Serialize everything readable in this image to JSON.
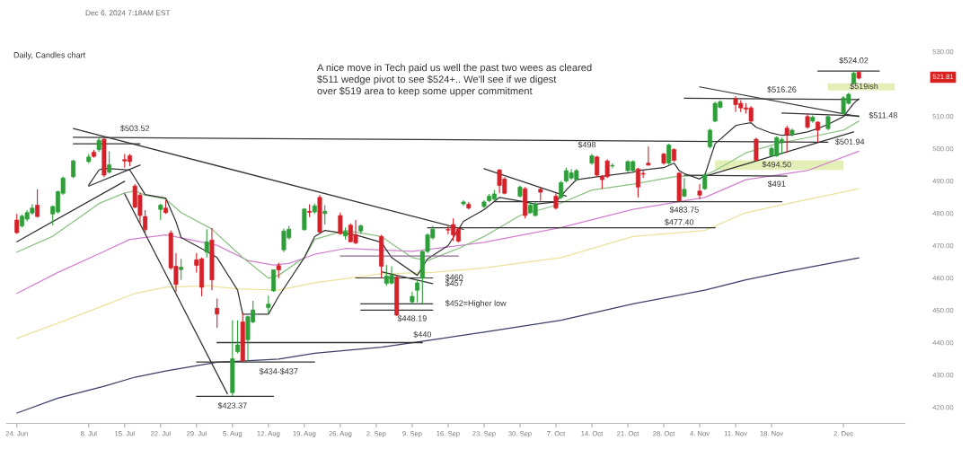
{
  "chart_data": {
    "type": "candlestick",
    "title": "Daily, Candles chart",
    "subtitle": "Dec 6, 2024 7:18AM EST",
    "x": [
      "2024-06-24",
      "2024-06-25",
      "2024-06-26",
      "2024-06-27",
      "2024-06-28",
      "2024-07-01",
      "2024-07-02",
      "2024-07-03",
      "2024-07-05",
      "2024-07-08",
      "2024-07-09",
      "2024-07-10",
      "2024-07-11",
      "2024-07-12",
      "2024-07-15",
      "2024-07-16",
      "2024-07-17",
      "2024-07-18",
      "2024-07-19",
      "2024-07-22",
      "2024-07-23",
      "2024-07-24",
      "2024-07-25",
      "2024-07-26",
      "2024-07-29",
      "2024-07-30",
      "2024-07-31",
      "2024-08-01",
      "2024-08-02",
      "2024-08-05",
      "2024-08-06",
      "2024-08-07",
      "2024-08-08",
      "2024-08-09",
      "2024-08-12",
      "2024-08-13",
      "2024-08-14",
      "2024-08-15",
      "2024-08-16",
      "2024-08-19",
      "2024-08-20",
      "2024-08-21",
      "2024-08-22",
      "2024-08-23",
      "2024-08-26",
      "2024-08-27",
      "2024-08-28",
      "2024-08-29",
      "2024-08-30",
      "2024-09-03",
      "2024-09-04",
      "2024-09-05",
      "2024-09-06",
      "2024-09-09",
      "2024-09-10",
      "2024-09-11",
      "2024-09-12",
      "2024-09-13",
      "2024-09-16",
      "2024-09-17",
      "2024-09-18",
      "2024-09-19",
      "2024-09-20",
      "2024-09-23",
      "2024-09-24",
      "2024-09-25",
      "2024-09-26",
      "2024-09-27",
      "2024-09-30",
      "2024-10-01",
      "2024-10-02",
      "2024-10-03",
      "2024-10-04",
      "2024-10-07",
      "2024-10-08",
      "2024-10-09",
      "2024-10-10",
      "2024-10-11",
      "2024-10-14",
      "2024-10-15",
      "2024-10-16",
      "2024-10-17",
      "2024-10-18",
      "2024-10-21",
      "2024-10-22",
      "2024-10-23",
      "2024-10-24",
      "2024-10-25",
      "2024-10-28",
      "2024-10-29",
      "2024-10-30",
      "2024-10-31",
      "2024-11-01",
      "2024-11-04",
      "2024-11-05",
      "2024-11-06",
      "2024-11-07",
      "2024-11-08",
      "2024-11-11",
      "2024-11-12",
      "2024-11-13",
      "2024-11-14",
      "2024-11-15",
      "2024-11-18",
      "2024-11-19",
      "2024-11-20",
      "2024-11-21",
      "2024-11-22",
      "2024-11-25",
      "2024-11-26",
      "2024-11-27",
      "2024-11-29",
      "2024-12-02",
      "2024-12-03",
      "2024-12-04",
      "2024-12-05"
    ],
    "ohlc": [
      [
        477.9,
        479.8,
        473.6,
        474.0
      ],
      [
        476.1,
        479.6,
        475.6,
        479.1
      ],
      [
        478.2,
        481.0,
        477.5,
        480.2
      ],
      [
        480.1,
        482.8,
        479.5,
        481.6
      ],
      [
        482.5,
        487.4,
        478.6,
        479.0
      ],
      [
        479.8,
        482.4,
        476.3,
        482.1
      ],
      [
        480.4,
        487.0,
        479.9,
        486.7
      ],
      [
        486.2,
        491.3,
        485.7,
        490.9
      ],
      [
        491.3,
        496.6,
        490.8,
        496.2
      ],
      [
        496.0,
        498.3,
        495.5,
        497.4
      ],
      [
        498.9,
        499.6,
        497.2,
        497.6
      ],
      [
        499.7,
        503.52,
        499.0,
        502.6
      ],
      [
        502.9,
        503.3,
        491.2,
        491.8
      ],
      [
        492.7,
        499.2,
        492.3,
        495.0
      ],
      [
        496.6,
        498.3,
        494.1,
        496.2
      ],
      [
        497.8,
        498.3,
        494.6,
        496.0
      ],
      [
        488.4,
        489.0,
        481.5,
        481.9
      ],
      [
        485.6,
        486.3,
        476.7,
        479.3
      ],
      [
        479.0,
        481.0,
        473.7,
        474.9
      ],
      [
        481.2,
        483.0,
        477.9,
        482.5
      ],
      [
        481.6,
        484.0,
        479.8,
        480.2
      ],
      [
        473.9,
        474.7,
        462.6,
        463.1
      ],
      [
        463.6,
        467.7,
        455.7,
        458.0
      ],
      [
        462.6,
        465.9,
        459.4,
        463.3
      ],
      [
        465.6,
        467.7,
        461.7,
        463.9
      ],
      [
        465.9,
        466.3,
        454.3,
        457.1
      ],
      [
        468.0,
        475.1,
        466.3,
        471.2
      ],
      [
        471.7,
        475.4,
        456.2,
        459.4
      ],
      [
        450.6,
        453.6,
        444.6,
        448.8
      ],
      [
        424.5,
        446.9,
        423.37,
        435.0
      ],
      [
        437.2,
        446.9,
        436.7,
        439.3
      ],
      [
        446.4,
        449.2,
        434.1,
        434.4
      ],
      [
        440.9,
        448.3,
        434.4,
        448.0
      ],
      [
        446.4,
        452.9,
        446.0,
        450.1
      ],
      [
        450.8,
        454.5,
        449.0,
        451.9
      ],
      [
        456.0,
        462.6,
        455.7,
        462.5
      ],
      [
        463.8,
        464.7,
        459.9,
        462.5
      ],
      [
        468.7,
        475.3,
        468.0,
        474.5
      ],
      [
        472.4,
        476.1,
        471.9,
        475.1
      ],
      [
        474.9,
        481.6,
        474.7,
        481.3
      ],
      [
        480.6,
        482.8,
        478.8,
        480.3
      ],
      [
        480.4,
        483.0,
        479.8,
        482.3
      ],
      [
        484.9,
        485.6,
        473.9,
        474.2
      ],
      [
        479.9,
        482.5,
        476.5,
        480.6
      ],
      [
        479.3,
        480.2,
        473.3,
        473.7
      ],
      [
        473.0,
        475.6,
        471.9,
        474.4
      ],
      [
        476.3,
        476.8,
        471.0,
        471.2
      ],
      [
        473.3,
        477.9,
        470.5,
        470.8
      ],
      [
        474.5,
        476.5,
        473.7,
        476.1
      ],
      [
        472.8,
        473.3,
        459.9,
        463.6
      ],
      [
        458.3,
        464.0,
        457.6,
        460.6
      ],
      [
        458.4,
        463.6,
        458.0,
        460.8
      ],
      [
        460.3,
        460.8,
        448.19,
        448.5
      ],
      [
        452.6,
        455.7,
        452.0,
        454.3
      ],
      [
        456.2,
        459.4,
        452.4,
        458.5
      ],
      [
        459.9,
        468.5,
        452.0,
        468.2
      ],
      [
        468.2,
        473.8,
        467.7,
        473.3
      ],
      [
        472.4,
        476.1,
        471.9,
        475.1
      ],
      [
        475.0,
        476.0,
        473.5,
        474.8
      ],
      [
        476.5,
        478.4,
        471.4,
        473.3
      ],
      [
        475.1,
        475.6,
        471.0,
        471.4
      ],
      [
        482.9,
        484.0,
        482.3,
        483.5
      ],
      [
        482.8,
        483.5,
        481.2,
        481.6
      ],
      [
        482.1,
        484.0,
        481.6,
        483.5
      ],
      [
        483.9,
        486.0,
        483.5,
        485.3
      ],
      [
        484.4,
        487.2,
        483.9,
        486.0
      ],
      [
        493.4,
        493.7,
        486.2,
        488.6
      ],
      [
        490.6,
        491.2,
        485.8,
        486.2
      ],
      [
        485.3,
        488.6,
        484.9,
        488.1
      ],
      [
        487.6,
        488.1,
        478.4,
        479.3
      ],
      [
        480.2,
        483.5,
        479.8,
        482.5
      ],
      [
        479.3,
        483.5,
        479.1,
        482.8
      ],
      [
        487.4,
        488.1,
        483.9,
        486.5
      ],
      [
        485.3,
        486.2,
        481.2,
        481.6
      ],
      [
        484.9,
        490.0,
        484.4,
        489.5
      ],
      [
        490.0,
        494.1,
        489.5,
        493.2
      ],
      [
        490.9,
        493.7,
        490.4,
        492.5
      ],
      [
        490.4,
        493.7,
        490.0,
        493.2
      ],
      [
        495.5,
        498.3,
        495.0,
        497.8
      ],
      [
        497.4,
        497.8,
        491.3,
        491.8
      ],
      [
        491.3,
        491.8,
        487.6,
        490.4
      ],
      [
        496.2,
        496.7,
        490.9,
        491.3
      ],
      [
        494.6,
        495.4,
        493.9,
        494.8
      ],
      [
        493.2,
        496.4,
        492.7,
        496.0
      ],
      [
        493.2,
        496.4,
        492.7,
        496.0
      ],
      [
        493.7,
        494.1,
        484.9,
        488.1
      ],
      [
        492.3,
        493.2,
        490.9,
        492.1
      ],
      [
        495.5,
        500.6,
        494.7,
        494.9
      ],
      [
        498.3,
        498.7,
        495.0,
        495.5
      ],
      [
        495.5,
        501.5,
        495.0,
        501.1
      ],
      [
        499.7,
        500.1,
        496.0,
        496.4
      ],
      [
        492.4,
        492.7,
        483.75,
        483.8
      ],
      [
        485.3,
        490.9,
        485.0,
        487.4
      ],
      [
        486.9,
        489.0,
        484.4,
        485.6
      ],
      [
        487.6,
        492.3,
        487.2,
        491.8
      ],
      [
        500.6,
        506.2,
        500.1,
        505.7
      ],
      [
        508.5,
        514.5,
        508.2,
        514.0
      ],
      [
        512.8,
        515.0,
        512.4,
        514.5
      ],
      [
        515.4,
        516.26,
        511.3,
        513.6
      ],
      [
        514.0,
        515.0,
        511.3,
        512.6
      ],
      [
        512.6,
        514.0,
        510.8,
        512.2
      ],
      [
        512.6,
        513.1,
        508.2,
        508.5
      ],
      [
        502.9,
        503.4,
        496.0,
        496.4
      ],
      [
        497.8,
        500.6,
        497.4,
        500.1
      ],
      [
        497.8,
        503.8,
        497.4,
        503.4
      ],
      [
        502.3,
        503.4,
        498.3,
        502.8
      ],
      [
        506.3,
        507.1,
        498.7,
        504.3
      ],
      [
        504.3,
        506.2,
        503.8,
        505.7
      ],
      [
        509.9,
        510.8,
        506.2,
        506.6
      ],
      [
        508.5,
        510.3,
        508.0,
        509.7
      ],
      [
        508.2,
        508.5,
        501.94,
        505.7
      ],
      [
        506.2,
        510.3,
        505.7,
        509.9
      ],
      [
        510.8,
        516.3,
        510.6,
        515.7
      ],
      [
        514.0,
        517.3,
        513.6,
        516.8
      ],
      [
        520.2,
        523.8,
        520.1,
        523.3
      ],
      [
        523.6,
        524.02,
        521.4,
        521.81
      ]
    ],
    "series": [
      {
        "type": "line",
        "color": "#3c3f68",
        "x": [
          "2024-06-24",
          "2024-07-02",
          "2024-07-11",
          "2024-07-17",
          "2024-07-23",
          "2024-08-02",
          "2024-08-14",
          "2024-08-21",
          "2024-09-03",
          "2024-09-13",
          "2024-09-23",
          "2024-10-08",
          "2024-10-22",
          "2024-11-05",
          "2024-11-13",
          "2024-11-20",
          "2024-12-05"
        ],
        "values": [
          418.2,
          422.8,
          426.5,
          429.3,
          431.2,
          433.9,
          434.9,
          436.7,
          438.6,
          440.9,
          443.2,
          446.9,
          452.0,
          456.2,
          459.4,
          461.7,
          466.2
        ]
      },
      {
        "type": "line",
        "color": "#ebe39a",
        "x": [
          "2024-06-24",
          "2024-07-02",
          "2024-07-11",
          "2024-07-17",
          "2024-07-23",
          "2024-07-31",
          "2024-08-06",
          "2024-08-14",
          "2024-08-21",
          "2024-09-03",
          "2024-09-13",
          "2024-09-23",
          "2024-10-08",
          "2024-10-22",
          "2024-11-05",
          "2024-11-13",
          "2024-11-20",
          "2024-12-05"
        ],
        "values": [
          441.3,
          446.0,
          451.5,
          455.2,
          457.1,
          457.6,
          456.6,
          456.2,
          458.5,
          461.3,
          461.7,
          463.1,
          466.3,
          472.8,
          474.7,
          480.2,
          482.6,
          487.6
        ]
      },
      {
        "type": "line",
        "color": "#d27fd0",
        "x": [
          "2024-06-24",
          "2024-07-02",
          "2024-07-11",
          "2024-07-16",
          "2024-07-23",
          "2024-07-26",
          "2024-08-02",
          "2024-08-08",
          "2024-08-13",
          "2024-08-16",
          "2024-08-21",
          "2024-08-27",
          "2024-09-09",
          "2024-09-23",
          "2024-10-08",
          "2024-10-22",
          "2024-11-05",
          "2024-11-13",
          "2024-11-25",
          "2024-12-05"
        ],
        "values": [
          455.2,
          461.7,
          468.2,
          471.9,
          473.3,
          472.4,
          470.1,
          465.4,
          464.0,
          464.5,
          467.3,
          469.1,
          468.2,
          471.0,
          475.6,
          481.2,
          484.9,
          490.4,
          493.2,
          499.2
        ]
      },
      {
        "type": "line",
        "color": "#8cc084",
        "x": [
          "2024-06-24",
          "2024-07-01",
          "2024-07-10",
          "2024-07-15",
          "2024-07-17",
          "2024-07-19",
          "2024-07-23",
          "2024-07-26",
          "2024-08-01",
          "2024-08-07",
          "2024-08-12",
          "2024-08-14",
          "2024-08-19",
          "2024-08-21",
          "2024-08-27",
          "2024-09-03",
          "2024-09-09",
          "2024-09-12",
          "2024-09-18",
          "2024-09-23",
          "2024-09-30",
          "2024-10-07",
          "2024-10-14",
          "2024-10-22",
          "2024-10-30",
          "2024-11-05",
          "2024-11-07",
          "2024-11-13",
          "2024-11-19",
          "2024-11-25",
          "2024-12-02",
          "2024-12-05"
        ],
        "values": [
          468.0,
          472.9,
          483.0,
          486.3,
          486.9,
          485.6,
          484.4,
          480.2,
          475.1,
          466.3,
          459.9,
          460.8,
          466.3,
          471.9,
          474.7,
          472.8,
          466.3,
          465.4,
          469.1,
          472.8,
          479.3,
          482.5,
          487.2,
          489.0,
          491.3,
          491.8,
          493.2,
          498.7,
          501.5,
          503.4,
          505.7,
          508.5
        ]
      },
      {
        "type": "line",
        "color": "#333333",
        "x": [
          "2024-07-08",
          "2024-07-10",
          "2024-07-11",
          "2024-07-16",
          "2024-07-19",
          "2024-07-23",
          "2024-07-25",
          "2024-07-26",
          "2024-07-31",
          "2024-08-02",
          "2024-08-06",
          "2024-08-07",
          "2024-08-12",
          "2024-08-14",
          "2024-08-19",
          "2024-08-21",
          "2024-08-23",
          "2024-08-29",
          "2024-09-03",
          "2024-09-05",
          "2024-09-10",
          "2024-09-12",
          "2024-09-16",
          "2024-09-19",
          "2024-09-23",
          "2024-09-26",
          "2024-10-01",
          "2024-10-03",
          "2024-10-07",
          "2024-10-09",
          "2024-10-11",
          "2024-10-15",
          "2024-10-22",
          "2024-10-23",
          "2024-10-28",
          "2024-10-30",
          "2024-10-31",
          "2024-11-01",
          "2024-11-04",
          "2024-11-05",
          "2024-11-07",
          "2024-11-11",
          "2024-11-12",
          "2024-11-14",
          "2024-11-15",
          "2024-11-18",
          "2024-11-20",
          "2024-11-22",
          "2024-11-25",
          "2024-11-27",
          "2024-11-29",
          "2024-12-02",
          "2024-12-04",
          "2024-12-05"
        ],
        "values": [
          488.7,
          493.4,
          493.9,
          493.4,
          485.8,
          484.7,
          477.4,
          472.5,
          468.2,
          466.3,
          456.2,
          448.8,
          448.8,
          454.3,
          466.3,
          472.8,
          474.7,
          473.3,
          471.0,
          466.3,
          460.8,
          465.9,
          470.0,
          477.5,
          481.1,
          484.9,
          483.5,
          482.8,
          483.5,
          487.2,
          490.4,
          491.3,
          492.7,
          493.2,
          494.1,
          495.5,
          493.2,
          492.3,
          490.6,
          491.8,
          501.5,
          507.1,
          507.5,
          508.0,
          506.6,
          504.8,
          504.1,
          504.3,
          505.2,
          506.2,
          507.5,
          509.9,
          514.0,
          515.4
        ]
      },
      {
        "type": "line",
        "color": "#333333",
        "x": [
          "2024-07-05",
          "2024-09-19"
        ],
        "values": [
          506.2,
          475.0
        ]
      },
      {
        "type": "line",
        "color": "#333333",
        "x": [
          "2024-07-05",
          "2024-11-29"
        ],
        "values": [
          503.5,
          502.0
        ]
      },
      {
        "type": "line",
        "color": "#333333",
        "x": [
          "2024-07-05",
          "2024-07-18"
        ],
        "values": [
          501.5,
          501.5
        ]
      },
      {
        "type": "line",
        "color": "#333333",
        "x": [
          "2024-06-24",
          "2024-07-15"
        ],
        "values": [
          471.2,
          489.9
        ]
      },
      {
        "type": "line",
        "color": "#333333",
        "x": [
          "2024-07-08",
          "2024-07-18"
        ],
        "values": [
          488.4,
          494.9
        ]
      },
      {
        "type": "line",
        "color": "#333333",
        "x": [
          "2024-07-15",
          "2024-08-04"
        ],
        "values": [
          486.0,
          424.2
        ]
      },
      {
        "type": "line",
        "color": "#333333",
        "x": [
          "2024-07-29",
          "2024-08-13"
        ],
        "values": [
          423.4,
          423.4
        ]
      },
      {
        "type": "line",
        "color": "#333333",
        "x": [
          "2024-07-29",
          "2024-08-21"
        ],
        "values": [
          434.0,
          434.0
        ]
      },
      {
        "type": "line",
        "color": "#333333",
        "x": [
          "2024-08-02",
          "2024-09-11"
        ],
        "values": [
          440.0,
          440.0
        ]
      },
      {
        "type": "line",
        "color": "#8a6f8f",
        "x": [
          "2024-08-26",
          "2024-09-18"
        ],
        "values": [
          466.8,
          466.8
        ]
      },
      {
        "type": "line",
        "color": "#333333",
        "x": [
          "2024-08-29",
          "2024-09-13"
        ],
        "values": [
          460.0,
          460.0
        ]
      },
      {
        "type": "line",
        "color": "#333333",
        "x": [
          "2024-09-03",
          "2024-09-13"
        ],
        "values": [
          461.9,
          458.2
        ]
      },
      {
        "type": "line",
        "color": "#333333",
        "x": [
          "2024-08-30",
          "2024-09-13"
        ],
        "values": [
          452.0,
          452.0
        ]
      },
      {
        "type": "line",
        "color": "#333333",
        "x": [
          "2024-08-30",
          "2024-09-13"
        ],
        "values": [
          450.0,
          450.0
        ]
      },
      {
        "type": "line",
        "color": "#333333",
        "x": [
          "2024-09-23",
          "2024-10-09"
        ],
        "values": [
          493.8,
          485.3
        ]
      },
      {
        "type": "line",
        "color": "#333333",
        "x": [
          "2024-09-12",
          "2024-11-07"
        ],
        "values": [
          475.5,
          475.5
        ]
      },
      {
        "type": "line",
        "color": "#333333",
        "x": [
          "2024-09-25",
          "2024-11-20"
        ],
        "values": [
          483.6,
          483.6
        ]
      },
      {
        "type": "line",
        "color": "#333333",
        "x": [
          "2024-11-04",
          "2024-12-05"
        ],
        "values": [
          519.1,
          509.9
        ]
      },
      {
        "type": "line",
        "color": "#333333",
        "x": [
          "2024-11-01",
          "2024-12-05"
        ],
        "values": [
          515.6,
          515.2
        ]
      },
      {
        "type": "line",
        "color": "#333333",
        "x": [
          "2024-11-20",
          "2024-12-05"
        ],
        "values": [
          511.0,
          510.1
        ]
      },
      {
        "type": "line",
        "color": "#333333",
        "x": [
          "2024-11-05",
          "2024-12-04"
        ],
        "values": [
          491.4,
          505.2
        ]
      },
      {
        "type": "line",
        "color": "#333333",
        "x": [
          "2024-11-27",
          "2024-12-09"
        ],
        "values": [
          524.0,
          524.0
        ]
      },
      {
        "type": "line",
        "color": "#333333",
        "x": [
          "2024-11-01",
          "2024-11-21"
        ],
        "values": [
          491.8,
          491.5
        ]
      },
      {
        "type": "line",
        "color": "#e4efb8",
        "x": [
          "2024-11-07",
          "2024-12-02"
        ],
        "values": [
          null,
          null
        ],
        "lower": [
          493.4,
          493.4
        ],
        "upper": [
          496.4,
          496.4
        ]
      },
      {
        "type": "line",
        "color": "#e4efb8",
        "x": [
          "2024-11-29",
          "2024-12-12"
        ],
        "values": [
          null,
          null
        ],
        "lower": [
          518.0,
          518.0
        ],
        "upper": [
          520.2,
          520.2
        ]
      }
    ],
    "annotations": [
      "A nice move in Tech paid us well the past two wees as cleared\n$511 wedge pivot to see $524+.. We'll see if we digest\nover $519 area to keep some upper commitment",
      {
        "text": "$503.52",
        "x": "2024-07-17",
        "y": 503.4
      },
      {
        "text": "$423.37",
        "x": "2024-08-05",
        "y": 423.4
      },
      {
        "text": "$434-$437",
        "x": "2024-08-14",
        "y": 434.0
      },
      {
        "text": "$440",
        "x": "2024-09-11",
        "y": 440.0
      },
      {
        "text": "$448.19",
        "x": "2024-09-09",
        "y": 450.0
      },
      {
        "text": "$460",
        "x": "2024-09-13",
        "y": 460.0
      },
      {
        "text": "$457",
        "x": "2024-09-13",
        "y": 458.2
      },
      {
        "text": "$452=Higher low",
        "x": "2024-09-13",
        "y": 452.0
      },
      {
        "text": "$498",
        "x": "2024-10-14",
        "y": 498.3
      },
      {
        "text": "$483.75",
        "x": "2024-11-01",
        "y": 483.6
      },
      {
        "text": "$477.40",
        "x": "2024-10-31",
        "y": 475.5
      },
      {
        "text": "$494.50",
        "x": "2024-11-19",
        "y": 494.9
      },
      {
        "text": "$491",
        "x": "2024-11-19",
        "y": 491.6
      },
      {
        "text": "$501.94",
        "x": "2024-11-27",
        "y": 501.94
      },
      {
        "text": "$511.48",
        "x": "2024-12-05",
        "y": 510.1
      },
      {
        "text": "$516.26",
        "x": "2024-11-20",
        "y": 515.4
      },
      {
        "text": "$524.02",
        "x": "2024-12-04",
        "y": 524.0
      },
      {
        "text": "$519ish",
        "x": "2024-12-06",
        "y": 519.1
      },
      "521.81"
    ],
    "xlim": [
      "2024-06-22",
      "2024-12-14"
    ],
    "xticks": [
      {
        "value": "2024-06-24",
        "label": "24. Jun"
      },
      {
        "value": "2024-07-08",
        "label": "8. Jul"
      },
      {
        "value": "2024-07-15",
        "label": "15. Jul"
      },
      {
        "value": "2024-07-22",
        "label": "22. Jul"
      },
      {
        "value": "2024-07-29",
        "label": "29. Jul"
      },
      {
        "value": "2024-08-05",
        "label": "5. Aug"
      },
      {
        "value": "2024-08-12",
        "label": "12. Aug"
      },
      {
        "value": "2024-08-19",
        "label": "19. Aug"
      },
      {
        "value": "2024-08-26",
        "label": "26. Aug"
      },
      {
        "value": "2024-09-02",
        "label": "2. Sep"
      },
      {
        "value": "2024-09-09",
        "label": "9. Sep"
      },
      {
        "value": "2024-09-16",
        "label": "16. Sep"
      },
      {
        "value": "2024-09-23",
        "label": "23. Sep"
      },
      {
        "value": "2024-09-30",
        "label": "30. Sep"
      },
      {
        "value": "2024-10-07",
        "label": "7. Oct"
      },
      {
        "value": "2024-10-14",
        "label": "14. Oct"
      },
      {
        "value": "2024-10-21",
        "label": "21. Oct"
      },
      {
        "value": "2024-10-28",
        "label": "28. Oct"
      },
      {
        "value": "2024-11-04",
        "label": "4. Nov"
      },
      {
        "value": "2024-11-11",
        "label": "11. Nov"
      },
      {
        "value": "2024-11-18",
        "label": "18. Nov"
      },
      {
        "value": "2024-12-02",
        "label": "2. Dec"
      }
    ],
    "ylim": [
      415,
      530
    ],
    "yticks": [
      {
        "value": 420,
        "label": "420.00"
      },
      {
        "value": 430,
        "label": "430.00"
      },
      {
        "value": 440,
        "label": "440.00"
      },
      {
        "value": 450,
        "label": "450.00"
      },
      {
        "value": 460,
        "label": "460.00"
      },
      {
        "value": 470,
        "label": "470.00"
      },
      {
        "value": 480,
        "label": "480.00"
      },
      {
        "value": 490,
        "label": "490.00"
      },
      {
        "value": 500,
        "label": "500.00"
      },
      {
        "value": 510,
        "label": "510.00"
      },
      {
        "value": 530,
        "label": "530.00"
      }
    ]
  }
}
